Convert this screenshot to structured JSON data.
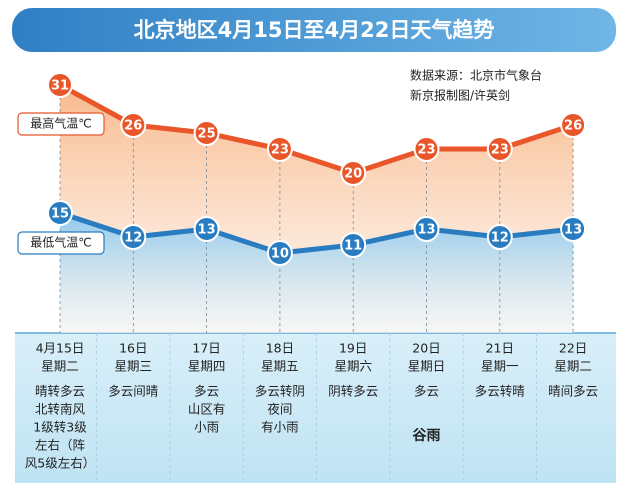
{
  "chart_data": {
    "type": "line",
    "title": "北京地区4月15日至4月22日天气趋势",
    "source": [
      "数据来源：北京市气象台",
      "新京报制图/许英剑"
    ],
    "categories": [
      "4月15日",
      "16日",
      "17日",
      "18日",
      "19日",
      "20日",
      "21日",
      "22日"
    ],
    "weekdays": [
      "星期二",
      "星期三",
      "星期四",
      "星期五",
      "星期六",
      "星期日",
      "星期一",
      "星期二"
    ],
    "weather": [
      [
        "晴转多云",
        "北转南风",
        "1级转3级",
        "左右（阵",
        "风5级左右）"
      ],
      [
        "多云间晴"
      ],
      [
        "多云",
        "山区有",
        "小雨"
      ],
      [
        "多云转阴",
        "夜间",
        "有小雨"
      ],
      [
        "阴转多云"
      ],
      [
        "多云"
      ],
      [
        "多云转晴"
      ],
      [
        "晴间多云"
      ]
    ],
    "solar_term": {
      "index": 5,
      "label": "谷雨"
    },
    "series": [
      {
        "name": "最高气温℃",
        "color": "#e8562a",
        "values": [
          31,
          26,
          25,
          23,
          20,
          23,
          23,
          26
        ]
      },
      {
        "name": "最低气温℃",
        "color": "#2a7cc0",
        "values": [
          15,
          12,
          13,
          10,
          11,
          13,
          12,
          13
        ]
      }
    ]
  }
}
